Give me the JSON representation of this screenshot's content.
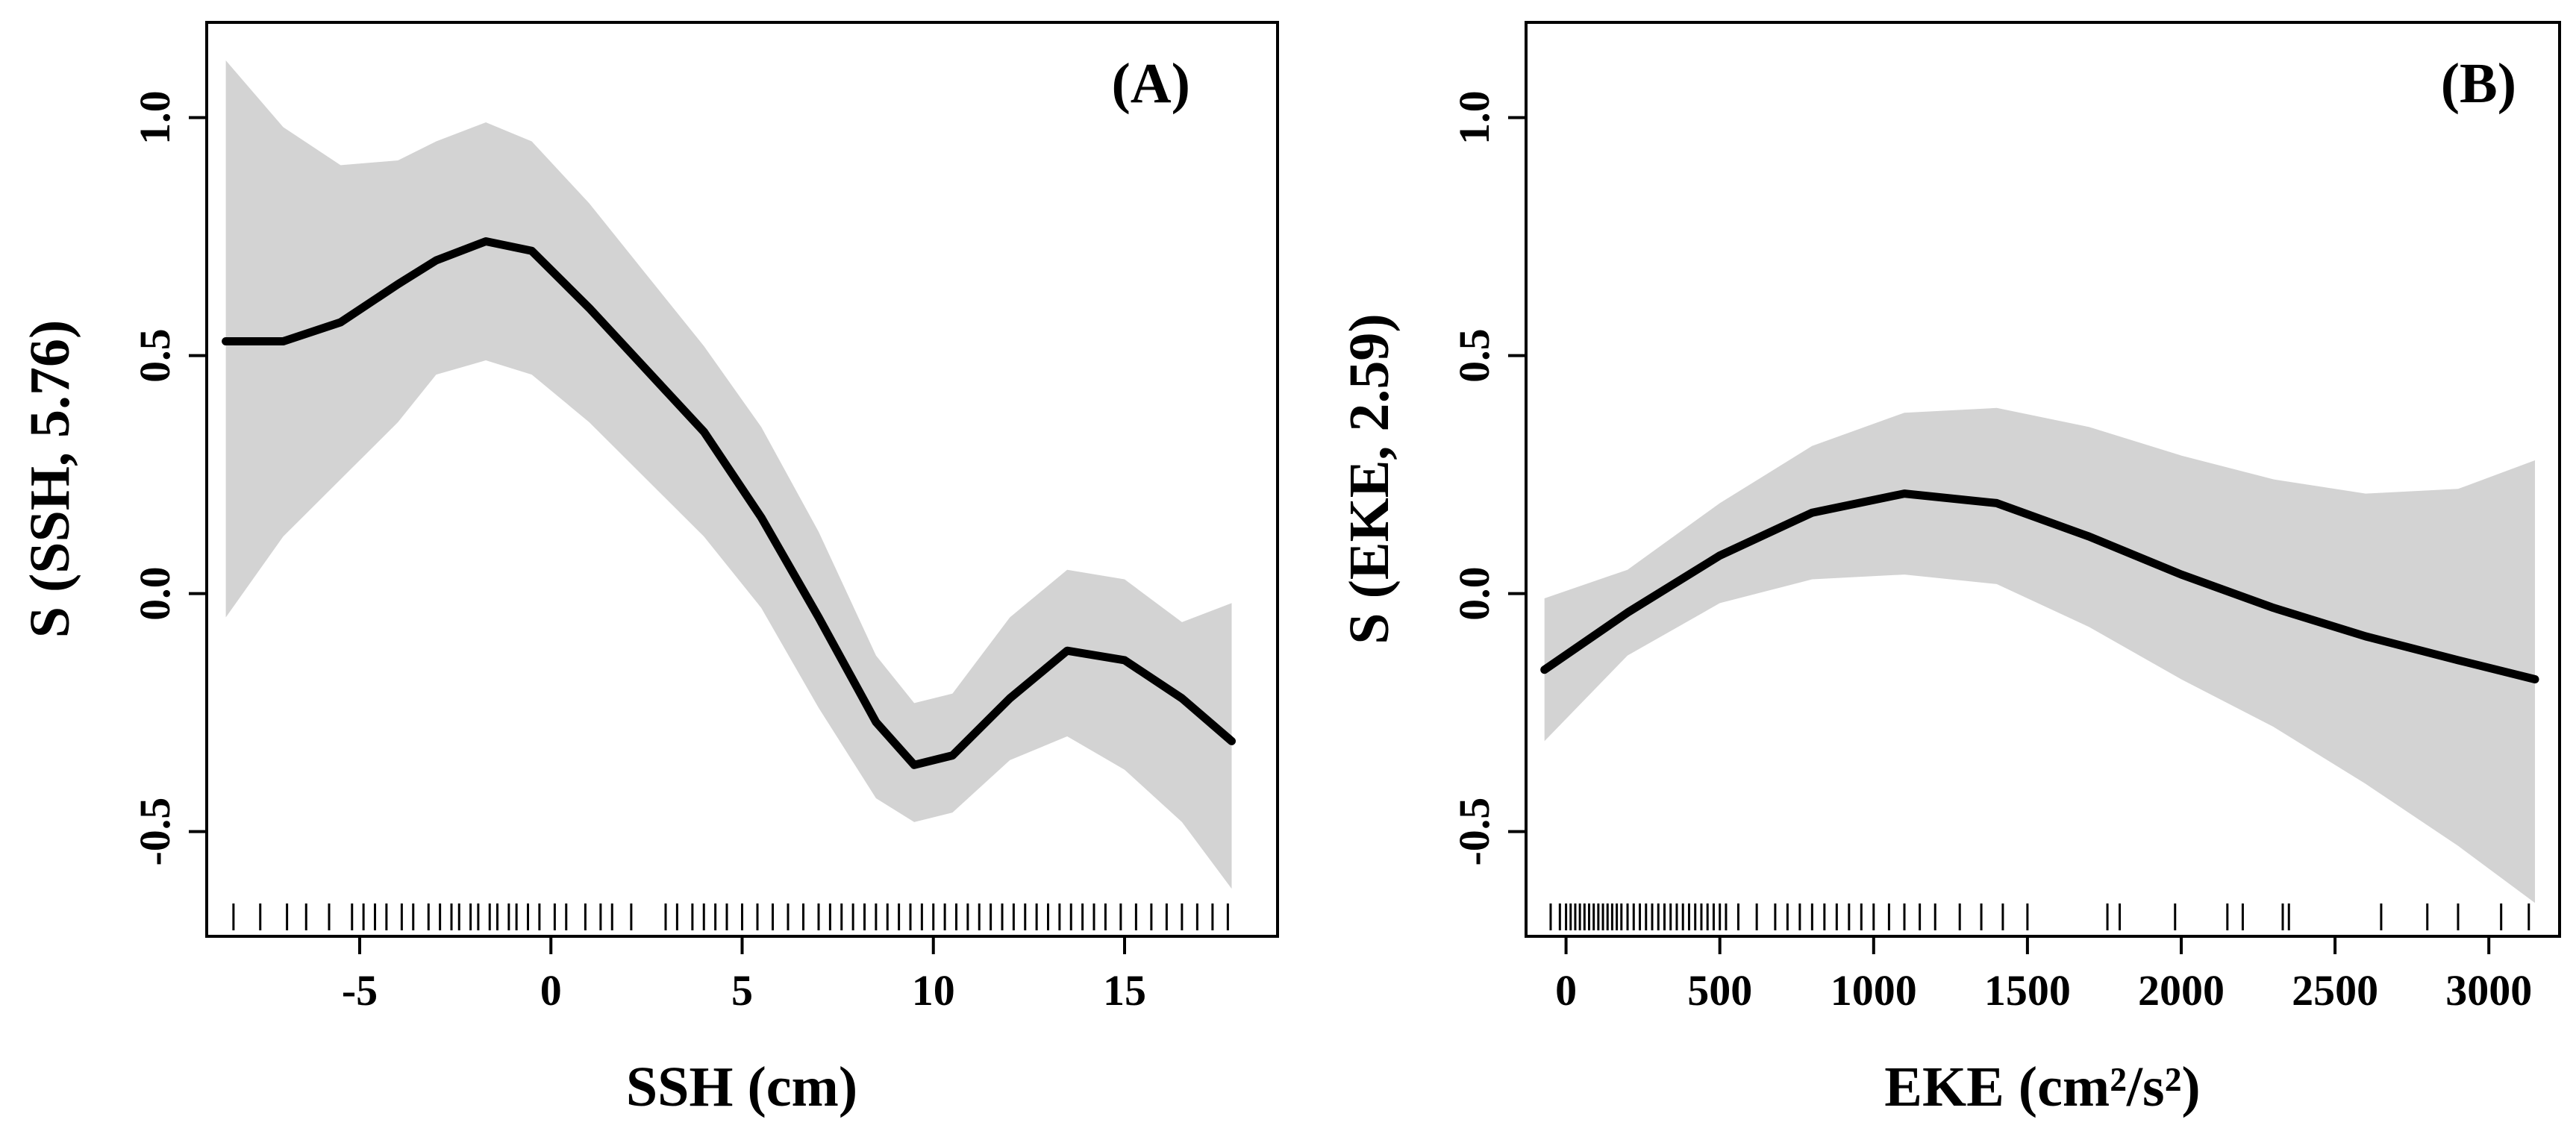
{
  "chart_data": [
    {
      "panel_label": "(A)",
      "type": "line",
      "xlabel": "SSH (cm)",
      "ylabel": "S (SSH, 5.76)",
      "xlim": [
        -9.0,
        19.0
      ],
      "ylim": [
        -0.72,
        1.2
      ],
      "xticks": [
        -5,
        0,
        5,
        10,
        15
      ],
      "xtick_labels": [
        "-5",
        "0",
        "5",
        "10",
        "15"
      ],
      "yticks": [
        -0.5,
        0.0,
        0.5,
        1.0
      ],
      "ytick_labels": [
        "-0.5",
        "0.0",
        "0.5",
        "1.0"
      ],
      "series": [
        {
          "name": "smooth",
          "x": [
            -8.5,
            -7,
            -5.5,
            -4,
            -3,
            -1.7,
            -0.5,
            1,
            2.5,
            4,
            5.5,
            7,
            8.5,
            9.5,
            10.5,
            12,
            13.5,
            15,
            16.5,
            17.8
          ],
          "values": [
            0.53,
            0.53,
            0.57,
            0.65,
            0.7,
            0.74,
            0.72,
            0.6,
            0.47,
            0.34,
            0.16,
            -0.05,
            -0.27,
            -0.36,
            -0.34,
            -0.22,
            -0.12,
            -0.14,
            -0.22,
            -0.31
          ]
        },
        {
          "name": "upper_ci",
          "x": [
            -8.5,
            -7,
            -5.5,
            -4,
            -3,
            -1.7,
            -0.5,
            1,
            2.5,
            4,
            5.5,
            7,
            8.5,
            9.5,
            10.5,
            12,
            13.5,
            15,
            16.5,
            17.8
          ],
          "values": [
            1.12,
            0.98,
            0.9,
            0.91,
            0.95,
            0.99,
            0.95,
            0.82,
            0.67,
            0.52,
            0.35,
            0.13,
            -0.13,
            -0.23,
            -0.21,
            -0.05,
            0.05,
            0.03,
            -0.06,
            -0.02
          ]
        },
        {
          "name": "lower_ci",
          "x": [
            -8.5,
            -7,
            -5.5,
            -4,
            -3,
            -1.7,
            -0.5,
            1,
            2.5,
            4,
            5.5,
            7,
            8.5,
            9.5,
            10.5,
            12,
            13.5,
            15,
            16.5,
            17.8
          ],
          "values": [
            -0.05,
            0.12,
            0.24,
            0.36,
            0.46,
            0.49,
            0.46,
            0.36,
            0.24,
            0.12,
            -0.03,
            -0.24,
            -0.43,
            -0.48,
            -0.46,
            -0.35,
            -0.3,
            -0.37,
            -0.48,
            -0.62
          ]
        }
      ],
      "rug_x": [
        -8.3,
        -7.6,
        -6.9,
        -6.4,
        -5.8,
        -5.2,
        -4.9,
        -4.6,
        -4.3,
        -3.9,
        -3.6,
        -3.2,
        -2.9,
        -2.6,
        -2.4,
        -2.1,
        -1.9,
        -1.6,
        -1.4,
        -1.1,
        -0.9,
        -0.6,
        -0.3,
        0.1,
        0.4,
        0.9,
        1.3,
        1.6,
        2.1,
        3.0,
        3.3,
        3.7,
        4.0,
        4.3,
        4.6,
        5.0,
        5.4,
        5.8,
        6.2,
        6.6,
        7.0,
        7.3,
        7.6,
        7.9,
        8.2,
        8.5,
        8.8,
        9.1,
        9.4,
        9.7,
        10.0,
        10.3,
        10.6,
        10.9,
        11.2,
        11.5,
        11.8,
        12.1,
        12.4,
        12.7,
        13.0,
        13.3,
        13.6,
        13.9,
        14.2,
        14.5,
        14.9,
        15.3,
        15.7,
        16.1,
        16.5,
        16.9,
        17.3,
        17.7
      ]
    },
    {
      "panel_label": "(B)",
      "type": "line",
      "xlabel": "EKE (cm²/s²)",
      "ylabel": "S (EKE, 2.59)",
      "xlim": [
        -130,
        3230
      ],
      "ylim": [
        -0.72,
        1.2
      ],
      "xticks": [
        0,
        500,
        1000,
        1500,
        2000,
        2500,
        3000
      ],
      "xtick_labels": [
        "0",
        "500",
        "1000",
        "1500",
        "2000",
        "2500",
        "3000"
      ],
      "yticks": [
        -0.5,
        0.0,
        0.5,
        1.0
      ],
      "ytick_labels": [
        "-0.5",
        "0.0",
        "0.5",
        "1.0"
      ],
      "series": [
        {
          "name": "smooth",
          "x": [
            -70,
            200,
            500,
            800,
            1100,
            1400,
            1700,
            2000,
            2300,
            2600,
            2900,
            3150
          ],
          "values": [
            -0.16,
            -0.04,
            0.08,
            0.17,
            0.21,
            0.19,
            0.12,
            0.04,
            -0.03,
            -0.09,
            -0.14,
            -0.18
          ]
        },
        {
          "name": "upper_ci",
          "x": [
            -70,
            200,
            500,
            800,
            1100,
            1400,
            1700,
            2000,
            2300,
            2600,
            2900,
            3150
          ],
          "values": [
            -0.01,
            0.05,
            0.19,
            0.31,
            0.38,
            0.39,
            0.35,
            0.29,
            0.24,
            0.21,
            0.22,
            0.28
          ]
        },
        {
          "name": "lower_ci",
          "x": [
            -70,
            200,
            500,
            800,
            1100,
            1400,
            1700,
            2000,
            2300,
            2600,
            2900,
            3150
          ],
          "values": [
            -0.31,
            -0.13,
            -0.02,
            0.03,
            0.04,
            0.02,
            -0.07,
            -0.18,
            -0.28,
            -0.4,
            -0.53,
            -0.65
          ]
        }
      ],
      "rug_x": [
        -50,
        -20,
        0,
        15,
        30,
        45,
        60,
        75,
        90,
        105,
        120,
        135,
        150,
        165,
        180,
        200,
        220,
        240,
        260,
        280,
        300,
        320,
        340,
        360,
        380,
        400,
        420,
        440,
        460,
        480,
        500,
        520,
        560,
        620,
        680,
        720,
        760,
        800,
        840,
        880,
        920,
        960,
        1000,
        1050,
        1100,
        1150,
        1200,
        1280,
        1350,
        1420,
        1500,
        1760,
        1800,
        1980,
        2150,
        2200,
        2330,
        2350,
        2650,
        2800,
        2900,
        3040,
        3130
      ]
    }
  ]
}
